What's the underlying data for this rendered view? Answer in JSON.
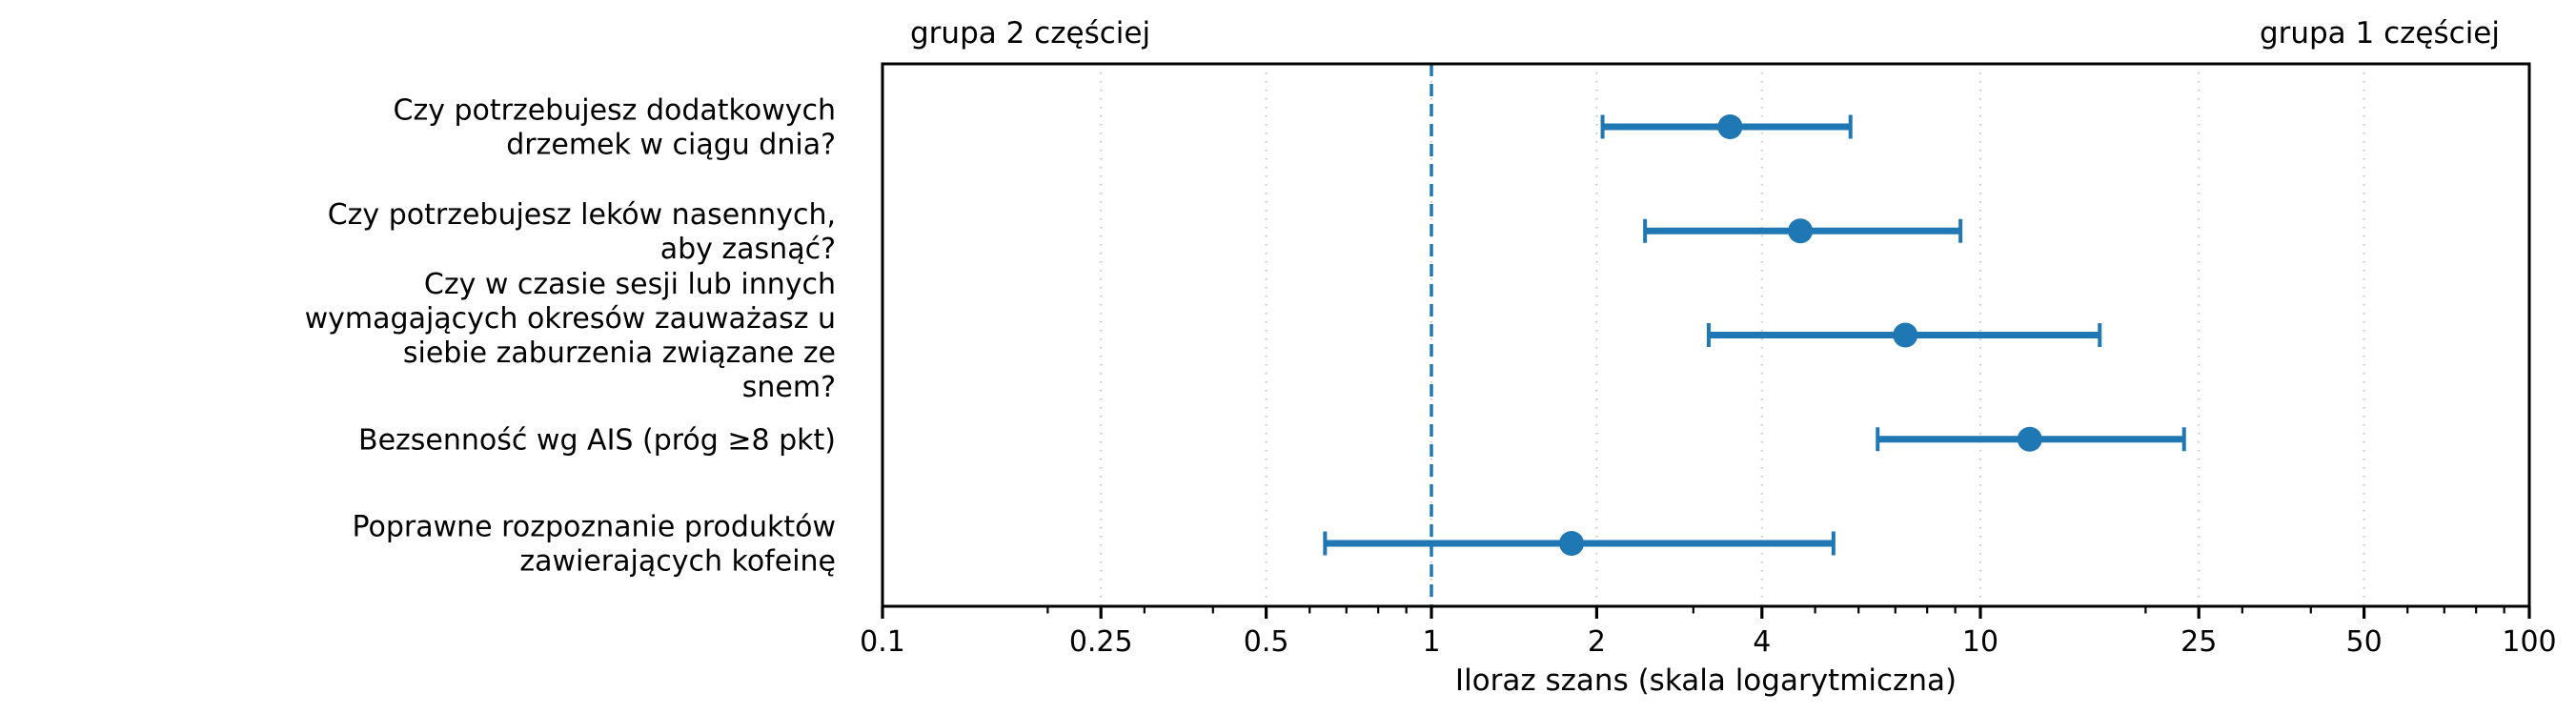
{
  "chart_data": {
    "type": "scatter",
    "subtype": "forest-plot-odds-ratio",
    "title": "",
    "xlabel": "Iloraz szans (skala logarytmiczna)",
    "x_scale": "log",
    "xlim": [
      0.1,
      100
    ],
    "grid": {
      "axis": "x",
      "style": "dotted",
      "gridline_ticks": [
        0.25,
        0.5,
        1,
        2,
        4,
        10,
        25,
        50
      ]
    },
    "legend": "none",
    "x_major_ticks": [
      {
        "value": 0.1,
        "label": "0.1"
      },
      {
        "value": 0.25,
        "label": "0.25"
      },
      {
        "value": 0.5,
        "label": "0.5"
      },
      {
        "value": 1,
        "label": "1"
      },
      {
        "value": 2,
        "label": "2"
      },
      {
        "value": 4,
        "label": "4"
      },
      {
        "value": 10,
        "label": "10"
      },
      {
        "value": 25,
        "label": "25"
      },
      {
        "value": 50,
        "label": "50"
      },
      {
        "value": 100,
        "label": "100"
      }
    ],
    "x_minor_ticks": [
      0.2,
      0.3,
      0.4,
      0.6,
      0.7,
      0.8,
      0.9,
      3,
      5,
      6,
      7,
      8,
      9,
      20,
      30,
      40,
      60,
      70,
      80,
      90
    ],
    "reference_line": {
      "value": 1,
      "style": "dashed"
    },
    "annotations": {
      "top_left": {
        "text": "grupa 2 częściej"
      },
      "top_right": {
        "text": "grupa 1 częściej"
      }
    },
    "rows": [
      {
        "label": "Czy potrzebujesz dodatkowych drzemek w ciągu dnia?",
        "label_lines": [
          "Czy potrzebujesz dodatkowych",
          "drzemek w ciągu dnia?"
        ],
        "odds_ratio": 3.5,
        "ci_low": 2.05,
        "ci_high": 5.8
      },
      {
        "label": "Czy potrzebujesz leków nasennych, aby zasnąć?",
        "label_lines": [
          "Czy potrzebujesz leków nasennych,",
          "aby zasnąć?"
        ],
        "odds_ratio": 4.7,
        "ci_low": 2.45,
        "ci_high": 9.2
      },
      {
        "label": "Czy w czasie sesji lub innych wymagających okresów zauważasz u siebie zaburzenia związane ze snem?",
        "label_lines": [
          "Czy w czasie sesji lub innych",
          "wymagających okresów zauważasz u",
          "siebie zaburzenia związane ze",
          "snem?"
        ],
        "odds_ratio": 7.3,
        "ci_low": 3.2,
        "ci_high": 16.5
      },
      {
        "label": "Bezsenność wg AIS (próg ≥8 pkt)",
        "label_lines": [
          "Bezsenność wg AIS (próg ≥8 pkt)"
        ],
        "odds_ratio": 12.3,
        "ci_low": 6.5,
        "ci_high": 23.5
      },
      {
        "label": "Poprawne rozpoznanie produktów zawierających kofeinę",
        "label_lines": [
          "Poprawne rozpoznanie produktów",
          "zawierających kofeinę"
        ],
        "odds_ratio": 1.8,
        "ci_low": 0.64,
        "ci_high": 5.4
      }
    ],
    "colors": {
      "series": "#1f77b4",
      "reference_line": "#1f77b4",
      "gridline": "#c9c9c9",
      "spine": "#000000",
      "text": "#000000",
      "background": "#ffffff"
    }
  }
}
